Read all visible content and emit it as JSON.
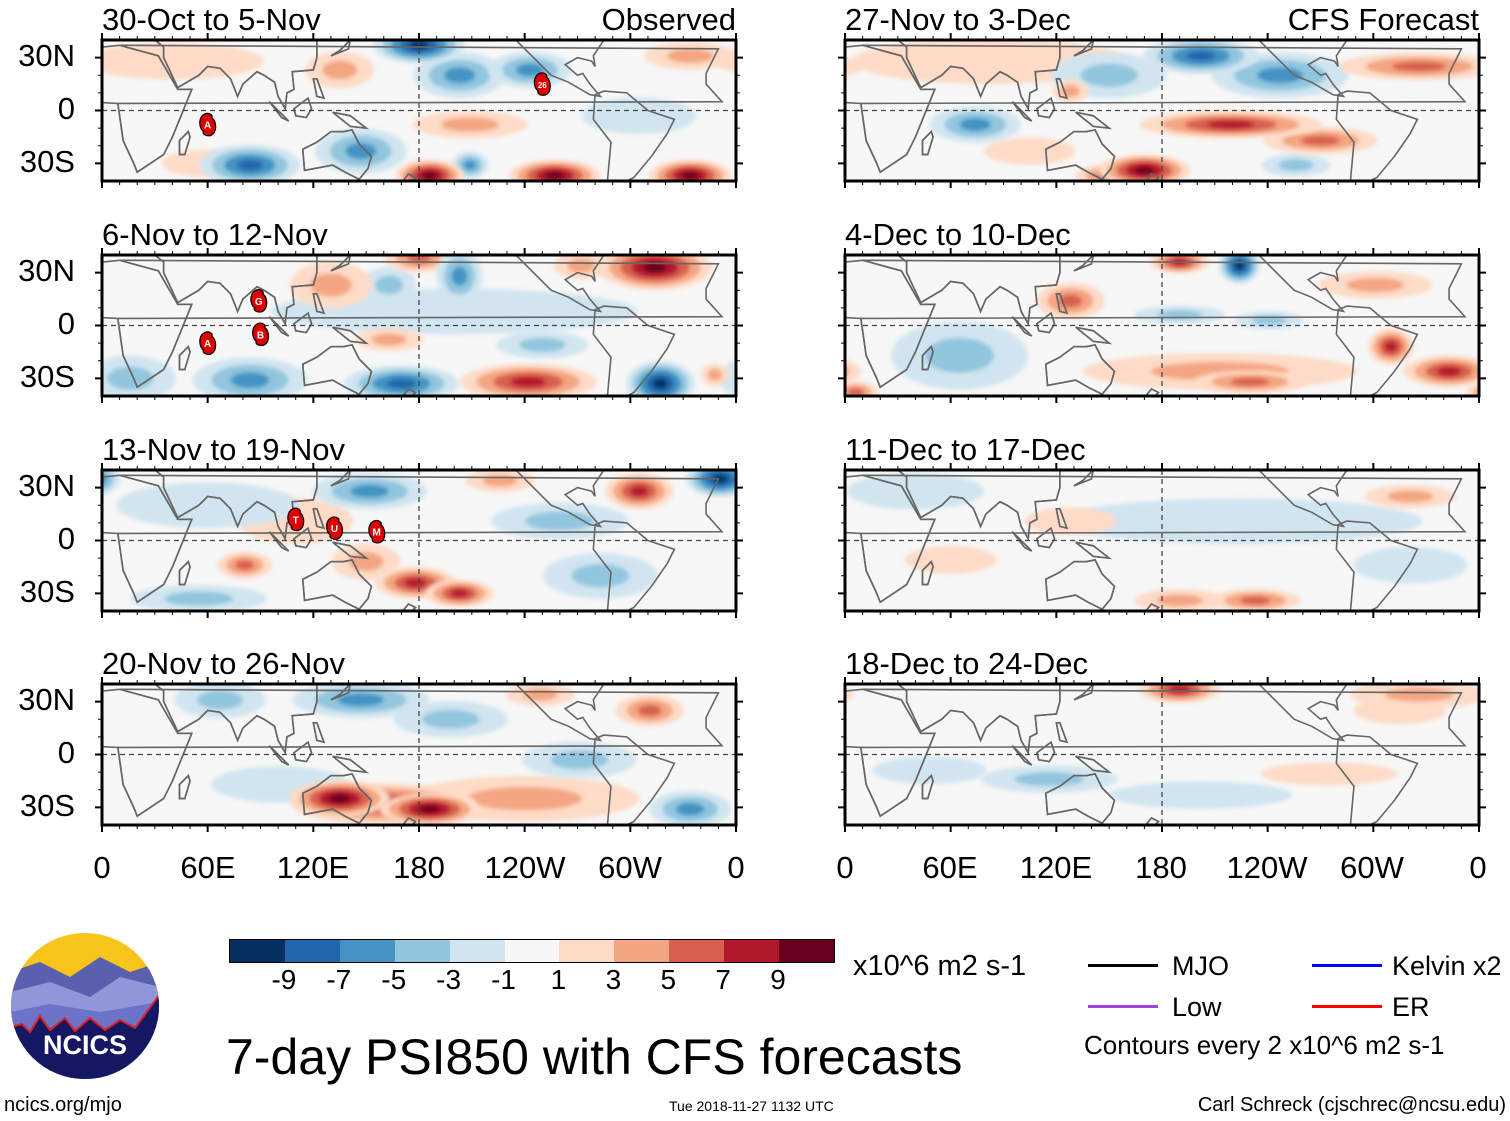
{
  "labels": {
    "observed": "Observed",
    "forecast": "CFS Forecast"
  },
  "lat_labels": [
    "30N",
    "0",
    "30S"
  ],
  "lon_labels": [
    "0",
    "60E",
    "120E",
    "180",
    "120W",
    "60W",
    "0"
  ],
  "colorbar": {
    "levels": [
      "-9",
      "-7",
      "-5",
      "-3",
      "-1",
      "1",
      "3",
      "5",
      "7",
      "9"
    ],
    "colors": [
      "#053061",
      "#2166ac",
      "#4393c3",
      "#92c5de",
      "#d1e5f0",
      "#f7f7f7",
      "#fddbc7",
      "#f4a582",
      "#d6604d",
      "#b2182b",
      "#67001f"
    ],
    "units": "x10^6 m2 s-1"
  },
  "legend": {
    "items": [
      {
        "label": "MJO",
        "color": "#000000"
      },
      {
        "label": "Kelvin x2",
        "color": "#0000ff"
      },
      {
        "label": "Low",
        "color": "#a040e0"
      },
      {
        "label": "ER",
        "color": "#ff0000"
      }
    ],
    "contours": "Contours every 2 x10^6 m2 s-1"
  },
  "title": "7-day PSI850 with CFS forecasts",
  "logo_text": "NCICS",
  "footer": {
    "url": "ncics.org/mjo",
    "timestamp": "Tue 2018-11-27 1132 UTC",
    "author": "Carl Schreck (cjschrec@ncsu.edu)"
  },
  "panels": [
    {
      "title": "30-Oct to 5-Nov",
      "tag": "Observed",
      "storms": [
        {
          "label": "A",
          "lon": 60,
          "lat": -8
        },
        {
          "label": "26",
          "lon": 250,
          "lat": 15
        }
      ],
      "anomalies": [
        [
          180,
          37,
          -9,
          20,
          8
        ],
        [
          203,
          20,
          -5,
          20,
          10
        ],
        [
          243,
          23,
          -5,
          18,
          8
        ],
        [
          135,
          23,
          3,
          15,
          8
        ],
        [
          84,
          -31,
          -7,
          22,
          9
        ],
        [
          147,
          -23,
          -5,
          20,
          10
        ],
        [
          186,
          -37,
          9,
          15,
          7
        ],
        [
          257,
          -37,
          9,
          20,
          7
        ],
        [
          334,
          -37,
          9,
          18,
          7
        ],
        [
          209,
          -8,
          3,
          25,
          6
        ],
        [
          209,
          -31,
          -5,
          8,
          6
        ],
        [
          334,
          31,
          3,
          20,
          6
        ],
        [
          305,
          -3,
          -1,
          25,
          8
        ],
        [
          40,
          28,
          1,
          40,
          8
        ],
        [
          60,
          -30,
          1,
          20,
          6
        ]
      ]
    },
    {
      "title": "27-Nov to 3-Dec",
      "tag": "CFS Forecast",
      "storms": [],
      "anomalies": [
        [
          202,
          31,
          -7,
          25,
          8
        ],
        [
          247,
          20,
          -5,
          30,
          10
        ],
        [
          150,
          20,
          -3,
          25,
          10
        ],
        [
          219,
          -8,
          7,
          40,
          6
        ],
        [
          270,
          -17,
          5,
          25,
          6
        ],
        [
          170,
          -34,
          9,
          20,
          7
        ],
        [
          150,
          -37,
          5,
          15,
          5
        ],
        [
          326,
          25,
          5,
          35,
          6
        ],
        [
          74,
          -8,
          -5,
          20,
          8
        ],
        [
          82,
          28,
          1,
          60,
          10
        ],
        [
          256,
          -31,
          -3,
          15,
          5
        ],
        [
          105,
          -23,
          1,
          20,
          6
        ],
        [
          128,
          11,
          3,
          8,
          5
        ]
      ]
    },
    {
      "title": "6-Nov to 12-Nov",
      "tag": "",
      "storms": [
        {
          "label": "G",
          "lon": 89,
          "lat": 14
        },
        {
          "label": "B",
          "lon": 90,
          "lat": -5
        },
        {
          "label": "A",
          "lon": 60,
          "lat": -10
        }
      ],
      "anomalies": [
        [
          314,
          33,
          9,
          25,
          10
        ],
        [
          180,
          38,
          5,
          15,
          6
        ],
        [
          203,
          28,
          -5,
          10,
          12
        ],
        [
          163,
          23,
          -3,
          12,
          8
        ],
        [
          130,
          23,
          3,
          18,
          10
        ],
        [
          272,
          34,
          3,
          12,
          6
        ],
        [
          242,
          -32,
          7,
          30,
          8
        ],
        [
          317,
          -33,
          -9,
          15,
          10
        ],
        [
          84,
          -31,
          -5,
          25,
          10
        ],
        [
          170,
          -33,
          -7,
          25,
          8
        ],
        [
          16,
          -30,
          -3,
          20,
          10
        ],
        [
          163,
          -8,
          3,
          15,
          5
        ],
        [
          250,
          -11,
          -3,
          20,
          6
        ],
        [
          200,
          8,
          -1,
          80,
          10
        ],
        [
          348,
          -28,
          3,
          6,
          5
        ]
      ]
    },
    {
      "title": "4-Dec to 10-Dec",
      "tag": "",
      "storms": [],
      "anomalies": [
        [
          190,
          36,
          7,
          13,
          5
        ],
        [
          224,
          34,
          -9,
          9,
          8
        ],
        [
          128,
          14,
          5,
          15,
          8
        ],
        [
          301,
          23,
          3,
          25,
          6
        ],
        [
          190,
          6,
          -3,
          20,
          4
        ],
        [
          241,
          3,
          -3,
          15,
          4
        ],
        [
          213,
          -26,
          3,
          60,
          8
        ],
        [
          230,
          -32,
          5,
          25,
          5
        ],
        [
          310,
          -12,
          7,
          10,
          8
        ],
        [
          343,
          -26,
          7,
          20,
          7
        ],
        [
          65,
          -17,
          -3,
          30,
          15
        ],
        [
          6,
          -38,
          5,
          10,
          5
        ]
      ]
    },
    {
      "title": "13-Nov to 19-Nov",
      "tag": "",
      "storms": [
        {
          "label": "T",
          "lon": 110,
          "lat": 12
        },
        {
          "label": "U",
          "lon": 132,
          "lat": 7
        },
        {
          "label": "M",
          "lon": 156,
          "lat": 5
        }
      ],
      "anomalies": [
        [
          351,
          35,
          -9,
          15,
          8
        ],
        [
          305,
          28,
          7,
          15,
          8
        ],
        [
          152,
          28,
          -5,
          25,
          8
        ],
        [
          226,
          34,
          3,
          15,
          5
        ],
        [
          178,
          -24,
          7,
          18,
          7
        ],
        [
          203,
          -30,
          7,
          15,
          6
        ],
        [
          150,
          -12,
          3,
          15,
          8
        ],
        [
          81,
          -14,
          5,
          12,
          6
        ],
        [
          283,
          -20,
          -3,
          25,
          10
        ],
        [
          260,
          11,
          -3,
          30,
          8
        ],
        [
          110,
          11,
          1,
          25,
          10
        ],
        [
          55,
          -33,
          -3,
          30,
          6
        ],
        [
          60,
          20,
          -1,
          40,
          10
        ]
      ]
    },
    {
      "title": "11-Dec to 17-Dec",
      "tag": "",
      "storms": [],
      "anomalies": [
        [
          321,
          25,
          3,
          20,
          5
        ],
        [
          190,
          -34,
          3,
          20,
          5
        ],
        [
          233,
          -34,
          5,
          20,
          5
        ],
        [
          224,
          11,
          -1,
          80,
          10
        ],
        [
          128,
          11,
          1,
          20,
          6
        ],
        [
          321,
          -14,
          -1,
          25,
          8
        ],
        [
          60,
          -11,
          1,
          20,
          6
        ],
        [
          40,
          28,
          -1,
          30,
          8
        ]
      ]
    },
    {
      "title": "20-Nov to 26-Nov",
      "tag": "",
      "storms": [],
      "anomalies": [
        [
          240,
          -25,
          3,
          50,
          10
        ],
        [
          135,
          -25,
          9,
          22,
          8
        ],
        [
          186,
          -31,
          9,
          22,
          7
        ],
        [
          160,
          -28,
          7,
          40,
          9
        ],
        [
          147,
          31,
          -5,
          30,
          8
        ],
        [
          198,
          20,
          -3,
          25,
          8
        ],
        [
          67,
          31,
          -3,
          20,
          8
        ],
        [
          311,
          25,
          5,
          15,
          7
        ],
        [
          334,
          -31,
          -5,
          18,
          8
        ],
        [
          271,
          -3,
          -3,
          25,
          8
        ],
        [
          249,
          34,
          3,
          15,
          5
        ],
        [
          101,
          -17,
          -1,
          30,
          8
        ]
      ]
    },
    {
      "title": "18-Dec to 24-Dec",
      "tag": "",
      "storms": [],
      "anomalies": [
        [
          190,
          37,
          7,
          18,
          6
        ],
        [
          326,
          34,
          3,
          30,
          6
        ],
        [
          116,
          -14,
          -3,
          30,
          6
        ],
        [
          48,
          -9,
          -1,
          25,
          6
        ],
        [
          202,
          -23,
          -1,
          40,
          6
        ],
        [
          275,
          -11,
          1,
          30,
          5
        ],
        [
          315,
          25,
          1,
          20,
          6
        ]
      ]
    }
  ]
}
